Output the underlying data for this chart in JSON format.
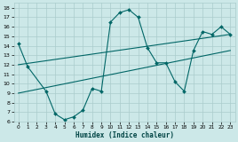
{
  "xlabel": "Humidex (Indice chaleur)",
  "bg_color": "#cce8e8",
  "grid_color": "#aacccc",
  "line_color": "#006666",
  "xlim": [
    -0.5,
    23.5
  ],
  "ylim": [
    6,
    18.5
  ],
  "xticks": [
    0,
    1,
    2,
    3,
    4,
    5,
    6,
    7,
    8,
    9,
    10,
    11,
    12,
    13,
    14,
    15,
    16,
    17,
    18,
    19,
    20,
    21,
    22,
    23
  ],
  "yticks": [
    6,
    7,
    8,
    9,
    10,
    11,
    12,
    13,
    14,
    15,
    16,
    17,
    18
  ],
  "series1_x": [
    0,
    1,
    3,
    4,
    5,
    6,
    7,
    8,
    9,
    10,
    11,
    12,
    13,
    14,
    15,
    16,
    17,
    18,
    19,
    20,
    21,
    22,
    23
  ],
  "series1_y": [
    14.2,
    11.8,
    9.2,
    6.8,
    6.2,
    6.5,
    7.2,
    9.5,
    9.2,
    16.5,
    17.5,
    17.8,
    17.0,
    13.8,
    12.2,
    12.2,
    10.2,
    9.2,
    13.5,
    15.5,
    15.2,
    16.0,
    15.2
  ],
  "series2_x": [
    0,
    23
  ],
  "series2_y": [
    9.0,
    13.5
  ],
  "series3_x": [
    0,
    23
  ],
  "series3_y": [
    12.0,
    15.2
  ]
}
